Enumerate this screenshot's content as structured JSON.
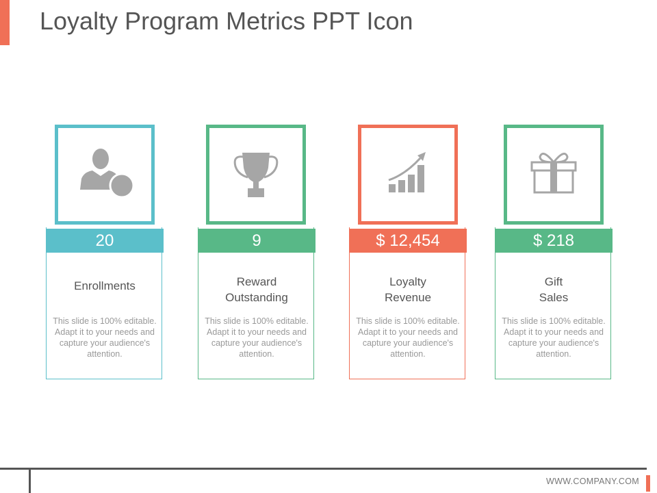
{
  "title": "Loyalty Program Metrics PPT Icon",
  "footer": {
    "url": "WWW.COMPANY.COM"
  },
  "colors": {
    "teal": "#5bbfca",
    "green": "#58b887",
    "coral": "#f07057",
    "icon_gray": "#a6a6a6"
  },
  "cards": [
    {
      "value": "20",
      "label_line1": "Enrollments",
      "label_line2": "",
      "icon": "user-coin-icon",
      "description": "This slide is 100% editable. Adapt it to your needs and capture your audience's attention."
    },
    {
      "value": "9",
      "label_line1": "Reward",
      "label_line2": "Outstanding",
      "icon": "trophy-icon",
      "description": "This slide is 100% editable. Adapt it to your needs and capture your audience's attention."
    },
    {
      "value": "$ 12,454",
      "label_line1": "Loyalty",
      "label_line2": "Revenue",
      "icon": "growth-chart-icon",
      "description": "This slide is 100% editable. Adapt it to your needs and capture your audience's attention."
    },
    {
      "value": "$ 218",
      "label_line1": "Gift",
      "label_line2": "Sales",
      "icon": "gift-icon",
      "description": "This slide is 100% editable. Adapt it to your needs and capture your audience's attention."
    }
  ]
}
